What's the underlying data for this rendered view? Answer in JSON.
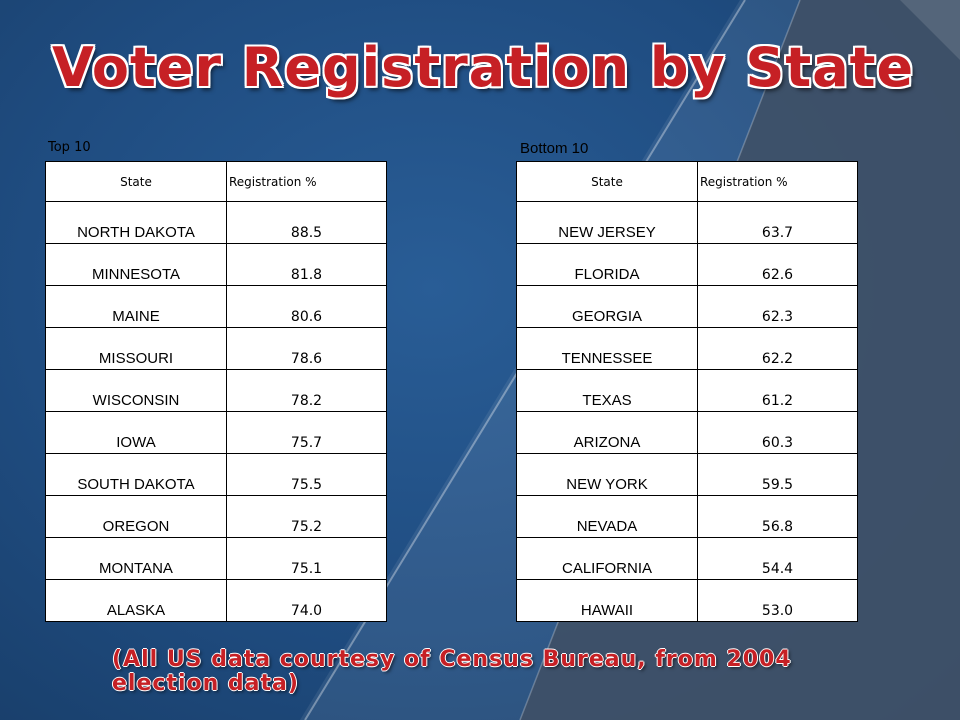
{
  "slide": {
    "title": "Voter Registration by State",
    "footnote": "(All US data courtesy of Census Bureau, from 2004 election data)"
  },
  "top_table": {
    "caption": "Top 10",
    "headers": [
      "State",
      "Registration %"
    ],
    "rows": [
      {
        "state": "NORTH DAKOTA",
        "pct": "88.5"
      },
      {
        "state": "MINNESOTA",
        "pct": "81.8"
      },
      {
        "state": "MAINE",
        "pct": "80.6"
      },
      {
        "state": "MISSOURI",
        "pct": "78.6"
      },
      {
        "state": "WISCONSIN",
        "pct": "78.2"
      },
      {
        "state": "IOWA",
        "pct": "75.7"
      },
      {
        "state": "SOUTH DAKOTA",
        "pct": "75.5"
      },
      {
        "state": "OREGON",
        "pct": "75.2"
      },
      {
        "state": "MONTANA",
        "pct": "75.1"
      },
      {
        "state": "ALASKA",
        "pct": "74.0"
      }
    ]
  },
  "bottom_table": {
    "caption": "Bottom 10",
    "headers": [
      "State",
      "Registration %"
    ],
    "rows": [
      {
        "state": "NEW JERSEY",
        "pct": "63.7"
      },
      {
        "state": "FLORIDA",
        "pct": "62.6"
      },
      {
        "state": "GEORGIA",
        "pct": "62.3"
      },
      {
        "state": "TENNESSEE",
        "pct": "62.2"
      },
      {
        "state": "TEXAS",
        "pct": "61.2"
      },
      {
        "state": "ARIZONA",
        "pct": "60.3"
      },
      {
        "state": "NEW YORK",
        "pct": "59.5"
      },
      {
        "state": "NEVADA",
        "pct": "56.8"
      },
      {
        "state": "CALIFORNIA",
        "pct": "54.4"
      },
      {
        "state": "HAWAII",
        "pct": "53.0"
      }
    ]
  },
  "colors": {
    "background": "#1f4c80",
    "title": "#c62025",
    "outline": "#ffffff",
    "decoration": "#3a4a5e"
  }
}
